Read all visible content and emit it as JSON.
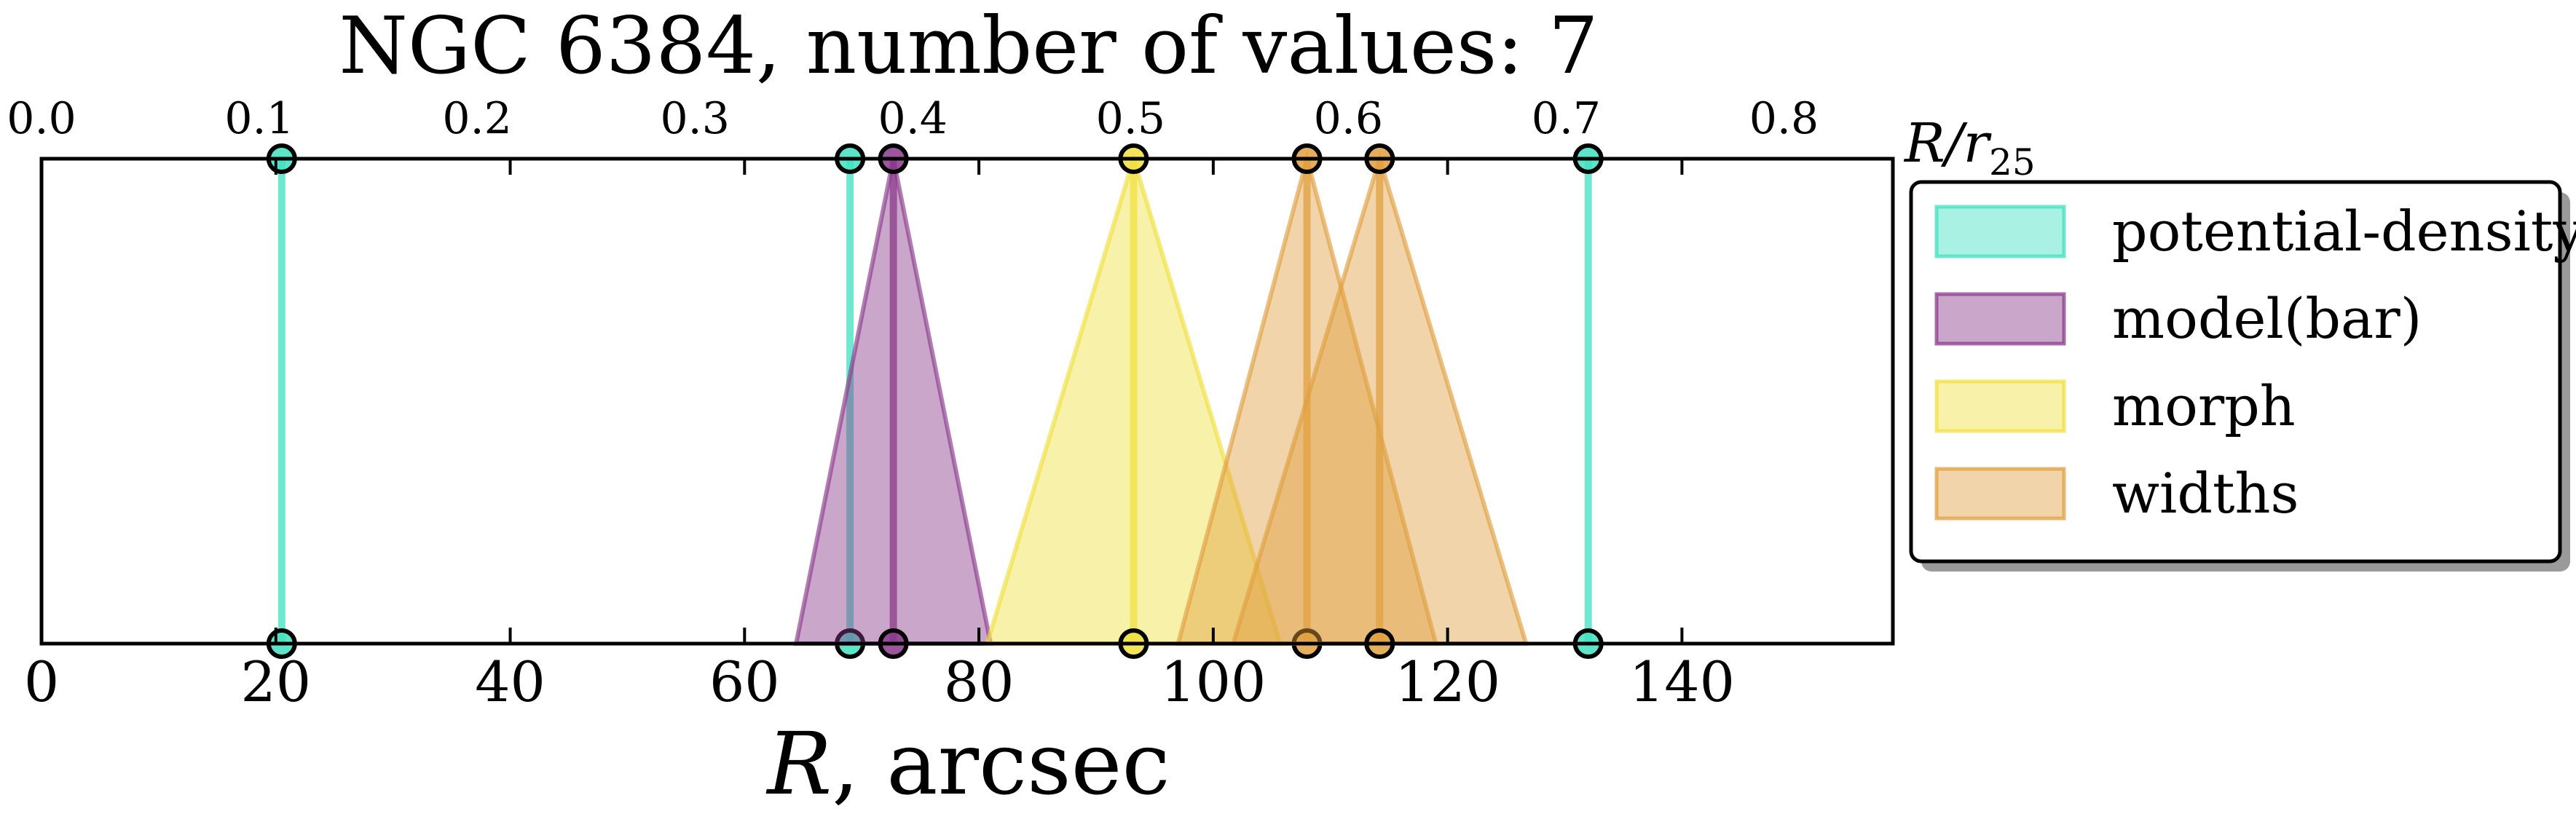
{
  "chart_data": {
    "type": "line",
    "title": "NGC 6384, number of values: 7",
    "xlabel": "R, arcsec",
    "xlabel_main": "R",
    "xlabel_suffix": ", arcsec",
    "top_axis_label_main": "R/r",
    "top_axis_label_sub": "25",
    "xlim": [
      0,
      158
    ],
    "top_xlim": [
      0.0,
      0.85
    ],
    "x_ticks": [
      "0",
      "20",
      "40",
      "60",
      "80",
      "100",
      "120",
      "140"
    ],
    "x_tick_values": [
      0,
      20,
      40,
      60,
      80,
      100,
      120,
      140
    ],
    "top_ticks": [
      "0.0",
      "0.1",
      "0.2",
      "0.3",
      "0.4",
      "0.5",
      "0.6",
      "0.7",
      "0.8"
    ],
    "top_tick_values": [
      0.0,
      0.1,
      0.2,
      0.3,
      0.4,
      0.5,
      0.6,
      0.7,
      0.8
    ],
    "grid": false,
    "legend_position": "outside-right",
    "series": [
      {
        "name": "potential-density",
        "color": "#40e0c0",
        "markers": [
          {
            "x": 20.5,
            "half_width": 0
          },
          {
            "x": 69.0,
            "half_width": 0
          },
          {
            "x": 132.0,
            "half_width": 0
          }
        ]
      },
      {
        "name": "model(bar)",
        "color": "#8b3a8b",
        "markers": [
          {
            "x": 72.7,
            "half_width": 8.3
          }
        ]
      },
      {
        "name": "morph",
        "color": "#f0e040",
        "markers": [
          {
            "x": 93.2,
            "half_width": 12.5
          }
        ]
      },
      {
        "name": "widths",
        "color": "#e0a040",
        "markers": [
          {
            "x": 108.0,
            "half_width": 11.0
          },
          {
            "x": 114.2,
            "half_width": 12.5
          }
        ]
      }
    ]
  }
}
